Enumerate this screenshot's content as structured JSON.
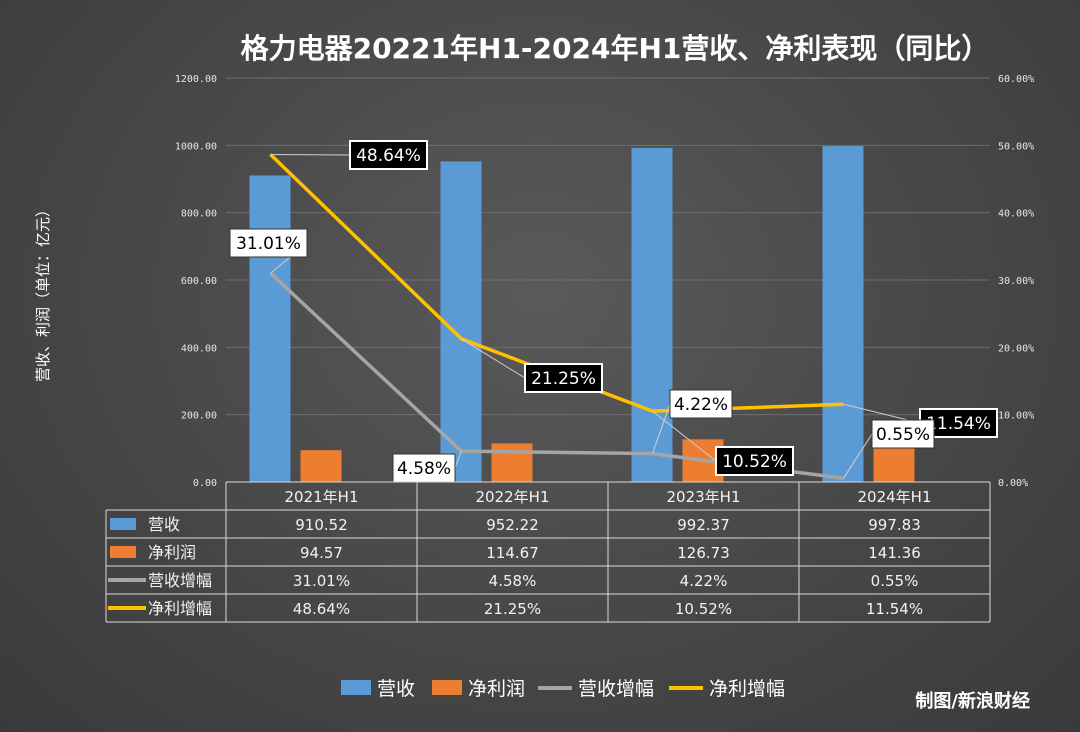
{
  "chart_data": {
    "type": "bar",
    "title": "格力电器20221年H1-2024年H1营收、净利表现（同比）",
    "ylabel": "营收、利润（单位：亿元）",
    "ylim": [
      0,
      1200
    ],
    "y2lim": [
      0,
      60
    ],
    "y_ticks": [
      "0.00",
      "200.00",
      "400.00",
      "600.00",
      "800.00",
      "1000.00",
      "1200.00"
    ],
    "y2_ticks": [
      "0.00%",
      "10.00%",
      "20.00%",
      "30.00%",
      "40.00%",
      "50.00%",
      "60.00%"
    ],
    "categories": [
      "2021年H1",
      "2022年H1",
      "2023年H1",
      "2024年H1"
    ],
    "grid": true,
    "legend": "bottom",
    "series": [
      {
        "name": "营收",
        "type": "bar",
        "axis": "left",
        "color": "#5b9bd5",
        "values": [
          910.52,
          952.22,
          992.37,
          997.83
        ],
        "table": [
          "910.52",
          "952.22",
          "992.37",
          "997.83"
        ]
      },
      {
        "name": "净利润",
        "type": "bar",
        "axis": "left",
        "color": "#ed7d31",
        "values": [
          94.57,
          114.67,
          126.73,
          141.36
        ],
        "table": [
          "94.57",
          "114.67",
          "126.73",
          "141.36"
        ]
      },
      {
        "name": "营收增幅",
        "type": "line",
        "axis": "right",
        "color": "#a5a5a5",
        "values": [
          31.01,
          4.58,
          4.22,
          0.55
        ],
        "table": [
          "31.01%",
          "4.58%",
          "4.22%",
          "0.55%"
        ]
      },
      {
        "name": "净利增幅",
        "type": "line",
        "axis": "right",
        "color": "#ffc000",
        "values": [
          48.64,
          21.25,
          10.52,
          11.54
        ],
        "table": [
          "48.64%",
          "21.25%",
          "10.52%",
          "11.54%"
        ]
      }
    ]
  },
  "credit": "制图/新浪财经"
}
